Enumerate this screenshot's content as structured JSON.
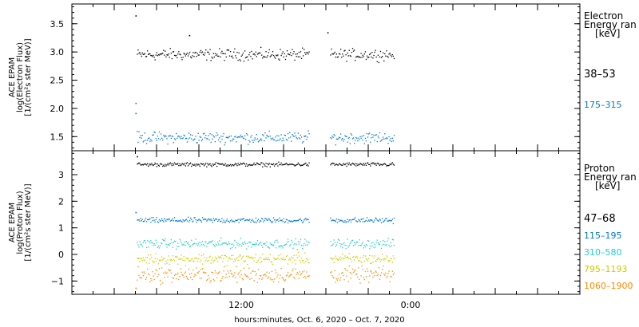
{
  "chart_data": [
    {
      "type": "scatter",
      "ylabel": [
        "ACE EPAM",
        "log(Electron Flux)",
        "[1/(cm²s ster MeV)]"
      ],
      "ylim": [
        1.25,
        3.85
      ],
      "yticks": [
        1.5,
        2.0,
        2.5,
        3.0,
        3.5
      ],
      "ytick_labels": [
        "1.5",
        "2.0",
        "2.5",
        "3.0",
        "3.5"
      ],
      "legend": {
        "heading": [
          "Electron",
          "Energy ran",
          "[keV]"
        ],
        "entries": [
          {
            "label": "38–53",
            "color": "#000000"
          },
          {
            "label": "175–315",
            "color": "#0077cc"
          }
        ]
      },
      "series": [
        {
          "name": "38–53",
          "color": "#000000",
          "base": 2.96,
          "jitter": 0.07,
          "spikes": [
            [
              4.5,
              3.65
            ],
            [
              8.3,
              3.3
            ],
            [
              18.1,
              3.35
            ]
          ]
        },
        {
          "name": "175–315",
          "color": "#0077cc",
          "base": 1.49,
          "jitter": 0.07,
          "spikes": [
            [
              4.5,
              2.1
            ],
            [
              4.5,
              1.92
            ]
          ]
        }
      ]
    },
    {
      "type": "scatter",
      "ylabel": [
        "ACE EPAM",
        "log(Proton Flux)",
        "[1/(cm²s ster MeV)]"
      ],
      "ylim": [
        -1.5,
        3.9
      ],
      "yticks": [
        -1,
        0,
        1,
        2,
        3
      ],
      "ytick_labels": [
        "−1",
        "0",
        "1",
        "2",
        "3"
      ],
      "legend": {
        "heading": [
          "Proton",
          "Energy ran",
          "[keV]"
        ],
        "entries": [
          {
            "label": "47–68",
            "color": "#000000"
          },
          {
            "label": "115–195",
            "color": "#0077cc"
          },
          {
            "label": "310–580",
            "color": "#22cccc"
          },
          {
            "label": "795–1193",
            "color": "#cccc00"
          },
          {
            "label": "1060–1900",
            "color": "#ff8800"
          }
        ]
      },
      "series": [
        {
          "name": "47–68",
          "color": "#000000",
          "base": 3.4,
          "jitter": 0.05,
          "spikes": [
            [
              4.6,
              3.7
            ]
          ]
        },
        {
          "name": "115–195",
          "color": "#0077cc",
          "base": 1.3,
          "jitter": 0.07,
          "spikes": [
            [
              4.5,
              1.6
            ]
          ]
        },
        {
          "name": "310–580",
          "color": "#22cccc",
          "base": 0.42,
          "jitter": 0.12,
          "spikes": []
        },
        {
          "name": "795–1193",
          "color": "#cccc00",
          "base": -0.15,
          "jitter": 0.14,
          "spikes": []
        },
        {
          "name": "1060–1900",
          "color": "#ff8800",
          "base": -0.75,
          "jitter": 0.2,
          "spikes": [
            [
              4.5,
              -1.25
            ]
          ]
        }
      ]
    }
  ],
  "time_axis": {
    "xlim": [
      0,
      36
    ],
    "data_segments": [
      [
        4.6,
        16.8
      ],
      [
        18.3,
        22.8
      ]
    ],
    "major_ticks": [
      12,
      24
    ],
    "tick_labels": [
      "12:00",
      "0:00"
    ],
    "minor_step": 1.5,
    "xlabel": "hours:minutes, Oct.  6, 2020 – Oct.  7, 2020"
  }
}
